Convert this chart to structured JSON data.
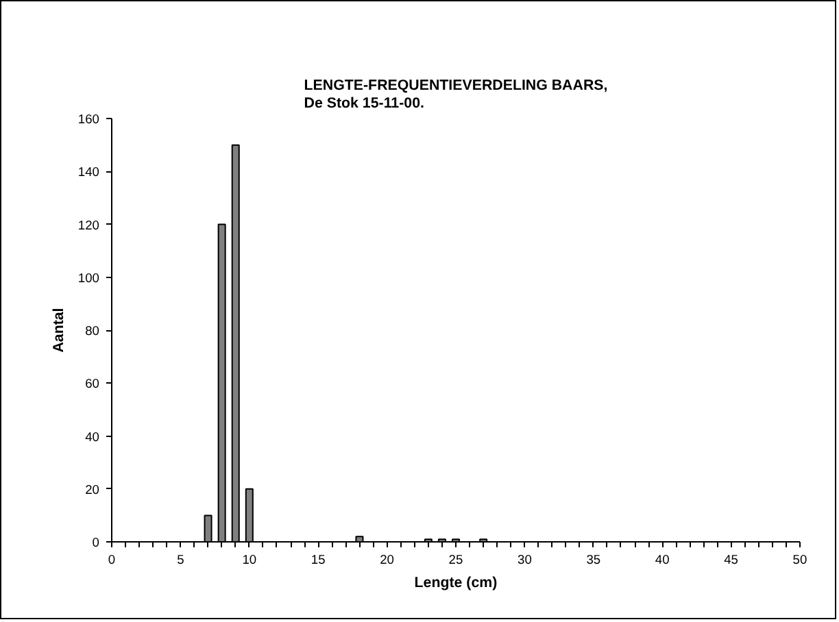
{
  "chart_data": {
    "type": "bar",
    "title": "LENGTE-FREQUENTIEVERDELING BAARS,\nDe Stok 15-11-00.",
    "xlabel": "Lengte (cm)",
    "ylabel": "Aantal",
    "x": [
      7,
      8,
      9,
      10,
      18,
      23,
      24,
      25,
      27
    ],
    "values": [
      10,
      120,
      150,
      20,
      2,
      1,
      1,
      1,
      1
    ],
    "color": "#808080",
    "xlim": [
      0,
      50
    ],
    "xticks": [
      0,
      {
        "value": 1,
        "label": null
      },
      {
        "value": 2,
        "label": null
      },
      {
        "value": 3,
        "label": null
      },
      {
        "value": 4,
        "label": null
      },
      5,
      {
        "value": 6,
        "label": null
      },
      {
        "value": 7,
        "label": null
      },
      {
        "value": 8,
        "label": null
      },
      {
        "value": 9,
        "label": null
      },
      10,
      {
        "value": 11,
        "label": null
      },
      {
        "value": 12,
        "label": null
      },
      {
        "value": 13,
        "label": null
      },
      {
        "value": 14,
        "label": null
      },
      15,
      {
        "value": 16,
        "label": null
      },
      {
        "value": 17,
        "label": null
      },
      {
        "value": 18,
        "label": null
      },
      {
        "value": 19,
        "label": null
      },
      20,
      {
        "value": 21,
        "label": null
      },
      {
        "value": 22,
        "label": null
      },
      {
        "value": 23,
        "label": null
      },
      {
        "value": 24,
        "label": null
      },
      25,
      {
        "value": 26,
        "label": null
      },
      {
        "value": 27,
        "label": null
      },
      {
        "value": 28,
        "label": null
      },
      {
        "value": 29,
        "label": null
      },
      30,
      {
        "value": 31,
        "label": null
      },
      {
        "value": 32,
        "label": null
      },
      {
        "value": 33,
        "label": null
      },
      {
        "value": 34,
        "label": null
      },
      35,
      {
        "value": 36,
        "label": null
      },
      {
        "value": 37,
        "label": null
      },
      {
        "value": 38,
        "label": null
      },
      {
        "value": 39,
        "label": null
      },
      40,
      {
        "value": 41,
        "label": null
      },
      {
        "value": 42,
        "label": null
      },
      {
        "value": 43,
        "label": null
      },
      {
        "value": 44,
        "label": null
      },
      45,
      {
        "value": 46,
        "label": null
      },
      {
        "value": 47,
        "label": null
      },
      {
        "value": 48,
        "label": null
      },
      {
        "value": 49,
        "label": null
      },
      50
    ],
    "ylim": [
      0,
      160
    ],
    "yticks": [
      0,
      20,
      40,
      60,
      80,
      100,
      120,
      140,
      160
    ],
    "grid": false
  }
}
